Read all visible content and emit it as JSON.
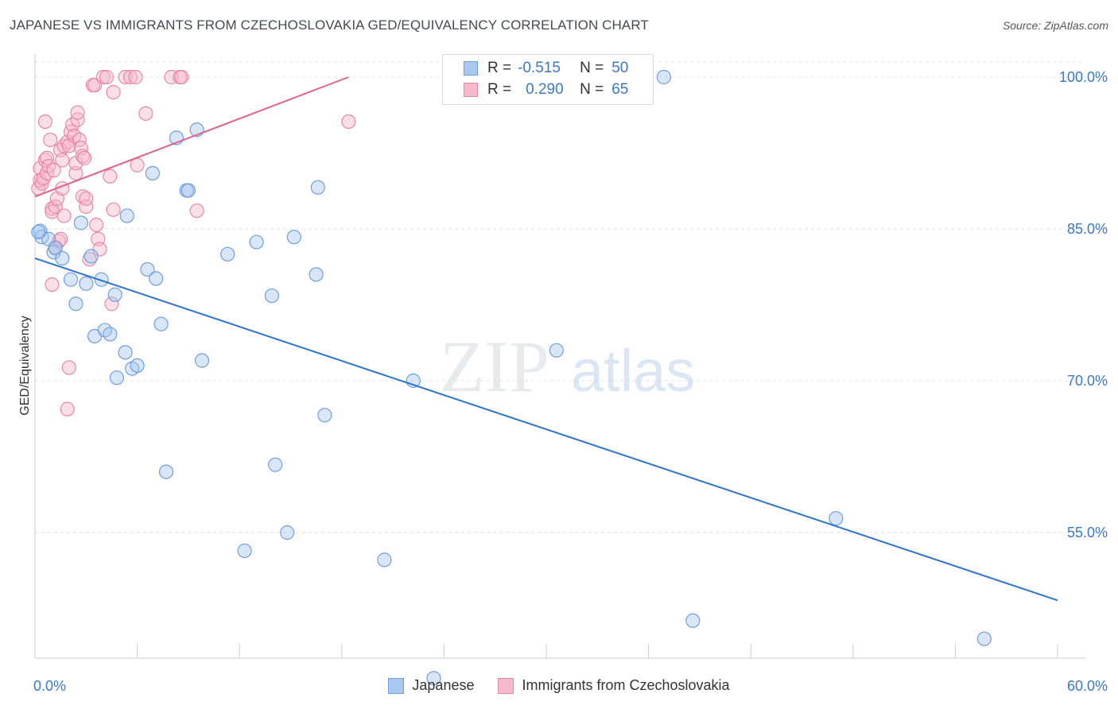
{
  "header": {
    "title": "JAPANESE VS IMMIGRANTS FROM CZECHOSLOVAKIA GED/EQUIVALENCY CORRELATION CHART",
    "source": "Source: ZipAtlas.com"
  },
  "watermark": {
    "zip": "ZIP",
    "atlas": "atlas"
  },
  "legend": {
    "japanese": {
      "r_label": "R =",
      "r_value": "-0.515",
      "n_label": "N =",
      "n_value": "50"
    },
    "czech": {
      "r_label": "R =",
      "r_value": "0.290",
      "n_label": "N =",
      "n_value": "65"
    }
  },
  "colors": {
    "japanese_fill": "#a9c8ef",
    "japanese_stroke": "#6e9fdc",
    "japanese_line": "#2f73cf",
    "czech_fill": "#f6b8cb",
    "czech_stroke": "#ea87a6",
    "czech_line": "#e0648e",
    "axis_text": "#3a78c9",
    "grid": "#e2e2e2"
  },
  "chart_data": {
    "type": "scatter",
    "title": "JAPANESE VS IMMIGRANTS FROM CZECHOSLOVAKIA GED/EQUIVALENCY CORRELATION CHART",
    "xlabel": "",
    "ylabel": "GED/Equivalency",
    "xlim": [
      0,
      60
    ],
    "ylim": [
      40,
      102
    ],
    "x_tick_labels": [
      "0.0%",
      "60.0%"
    ],
    "y_ticks": [
      55,
      70,
      85,
      100
    ],
    "y_tick_labels": [
      "55.0%",
      "70.0%",
      "85.0%",
      "100.0%"
    ],
    "grid": true,
    "legend_position": "top-center",
    "series": [
      {
        "name": "Japanese",
        "trend": {
          "x": [
            0,
            60
          ],
          "y": [
            82.1,
            48.3
          ]
        },
        "points": [
          [
            0.3,
            84.8
          ],
          [
            0.4,
            84.2
          ],
          [
            0.8,
            84.0
          ],
          [
            1.1,
            82.7
          ],
          [
            1.2,
            83.1
          ],
          [
            1.6,
            82.1
          ],
          [
            2.1,
            80.0
          ],
          [
            2.4,
            77.6
          ],
          [
            2.7,
            85.6
          ],
          [
            3.0,
            79.6
          ],
          [
            3.3,
            82.3
          ],
          [
            3.5,
            74.4
          ],
          [
            3.9,
            80.0
          ],
          [
            4.1,
            75.0
          ],
          [
            4.4,
            74.6
          ],
          [
            4.7,
            78.5
          ],
          [
            4.8,
            70.3
          ],
          [
            5.3,
            72.8
          ],
          [
            5.4,
            86.3
          ],
          [
            5.7,
            71.2
          ],
          [
            6.0,
            71.5
          ],
          [
            6.6,
            81.0
          ],
          [
            6.9,
            90.5
          ],
          [
            7.1,
            80.1
          ],
          [
            7.4,
            75.6
          ],
          [
            7.7,
            61.0
          ],
          [
            8.3,
            94.0
          ],
          [
            8.9,
            88.8
          ],
          [
            9.0,
            88.8
          ],
          [
            9.5,
            94.8
          ],
          [
            9.8,
            72.0
          ],
          [
            11.3,
            82.5
          ],
          [
            12.3,
            53.2
          ],
          [
            13.0,
            83.7
          ],
          [
            13.9,
            78.4
          ],
          [
            14.1,
            61.7
          ],
          [
            14.8,
            55.0
          ],
          [
            15.2,
            84.2
          ],
          [
            16.5,
            80.5
          ],
          [
            16.6,
            89.1
          ],
          [
            17.0,
            66.6
          ],
          [
            20.5,
            52.3
          ],
          [
            22.2,
            70.0
          ],
          [
            23.4,
            40.6
          ],
          [
            30.6,
            73.0
          ],
          [
            36.9,
            100.0
          ],
          [
            38.6,
            46.3
          ],
          [
            47.0,
            56.4
          ],
          [
            55.7,
            44.5
          ],
          [
            0.2,
            84.7
          ]
        ]
      },
      {
        "name": "Immigrants from Czechoslovakia",
        "trend": {
          "x": [
            0,
            18.4
          ],
          "y": [
            88.2,
            100.0
          ]
        },
        "points": [
          [
            0.2,
            89.0
          ],
          [
            0.3,
            89.8
          ],
          [
            0.3,
            91.0
          ],
          [
            0.4,
            89.5
          ],
          [
            0.5,
            90.0
          ],
          [
            0.6,
            91.8
          ],
          [
            0.7,
            92.0
          ],
          [
            0.7,
            90.5
          ],
          [
            0.8,
            91.2
          ],
          [
            0.9,
            93.8
          ],
          [
            1.0,
            87.0
          ],
          [
            1.0,
            86.7
          ],
          [
            1.1,
            90.8
          ],
          [
            1.2,
            83.2
          ],
          [
            1.2,
            87.2
          ],
          [
            1.3,
            88.0
          ],
          [
            1.4,
            83.8
          ],
          [
            1.5,
            92.8
          ],
          [
            1.6,
            91.8
          ],
          [
            1.6,
            89.0
          ],
          [
            1.7,
            86.3
          ],
          [
            1.7,
            93.2
          ],
          [
            1.9,
            93.6
          ],
          [
            2.0,
            93.2
          ],
          [
            2.1,
            94.6
          ],
          [
            2.2,
            95.3
          ],
          [
            2.3,
            94.2
          ],
          [
            2.4,
            90.5
          ],
          [
            2.4,
            91.5
          ],
          [
            2.5,
            95.8
          ],
          [
            2.5,
            96.5
          ],
          [
            2.6,
            93.8
          ],
          [
            2.7,
            93.0
          ],
          [
            2.8,
            88.2
          ],
          [
            2.8,
            92.2
          ],
          [
            3.0,
            87.2
          ],
          [
            3.0,
            88.0
          ],
          [
            3.2,
            82.0
          ],
          [
            3.4,
            99.2
          ],
          [
            3.5,
            99.2
          ],
          [
            3.6,
            85.4
          ],
          [
            3.7,
            84.0
          ],
          [
            3.8,
            83.0
          ],
          [
            4.0,
            100.0
          ],
          [
            4.2,
            100.0
          ],
          [
            4.4,
            90.2
          ],
          [
            4.5,
            77.6
          ],
          [
            4.6,
            98.5
          ],
          [
            4.6,
            86.9
          ],
          [
            5.3,
            100.0
          ],
          [
            5.6,
            100.0
          ],
          [
            5.9,
            100.0
          ],
          [
            6.0,
            91.3
          ],
          [
            6.5,
            96.4
          ],
          [
            8.0,
            100.0
          ],
          [
            8.5,
            100.0
          ],
          [
            8.6,
            100.0
          ],
          [
            9.5,
            86.8
          ],
          [
            18.4,
            95.6
          ],
          [
            1.0,
            79.5
          ],
          [
            2.0,
            71.3
          ],
          [
            1.9,
            67.2
          ],
          [
            0.6,
            95.6
          ],
          [
            2.9,
            92.0
          ],
          [
            1.5,
            84.0
          ]
        ]
      }
    ]
  },
  "bottom_legend": {
    "japanese_label": "Japanese",
    "czech_label": "Immigrants from Czechoslovakia"
  }
}
